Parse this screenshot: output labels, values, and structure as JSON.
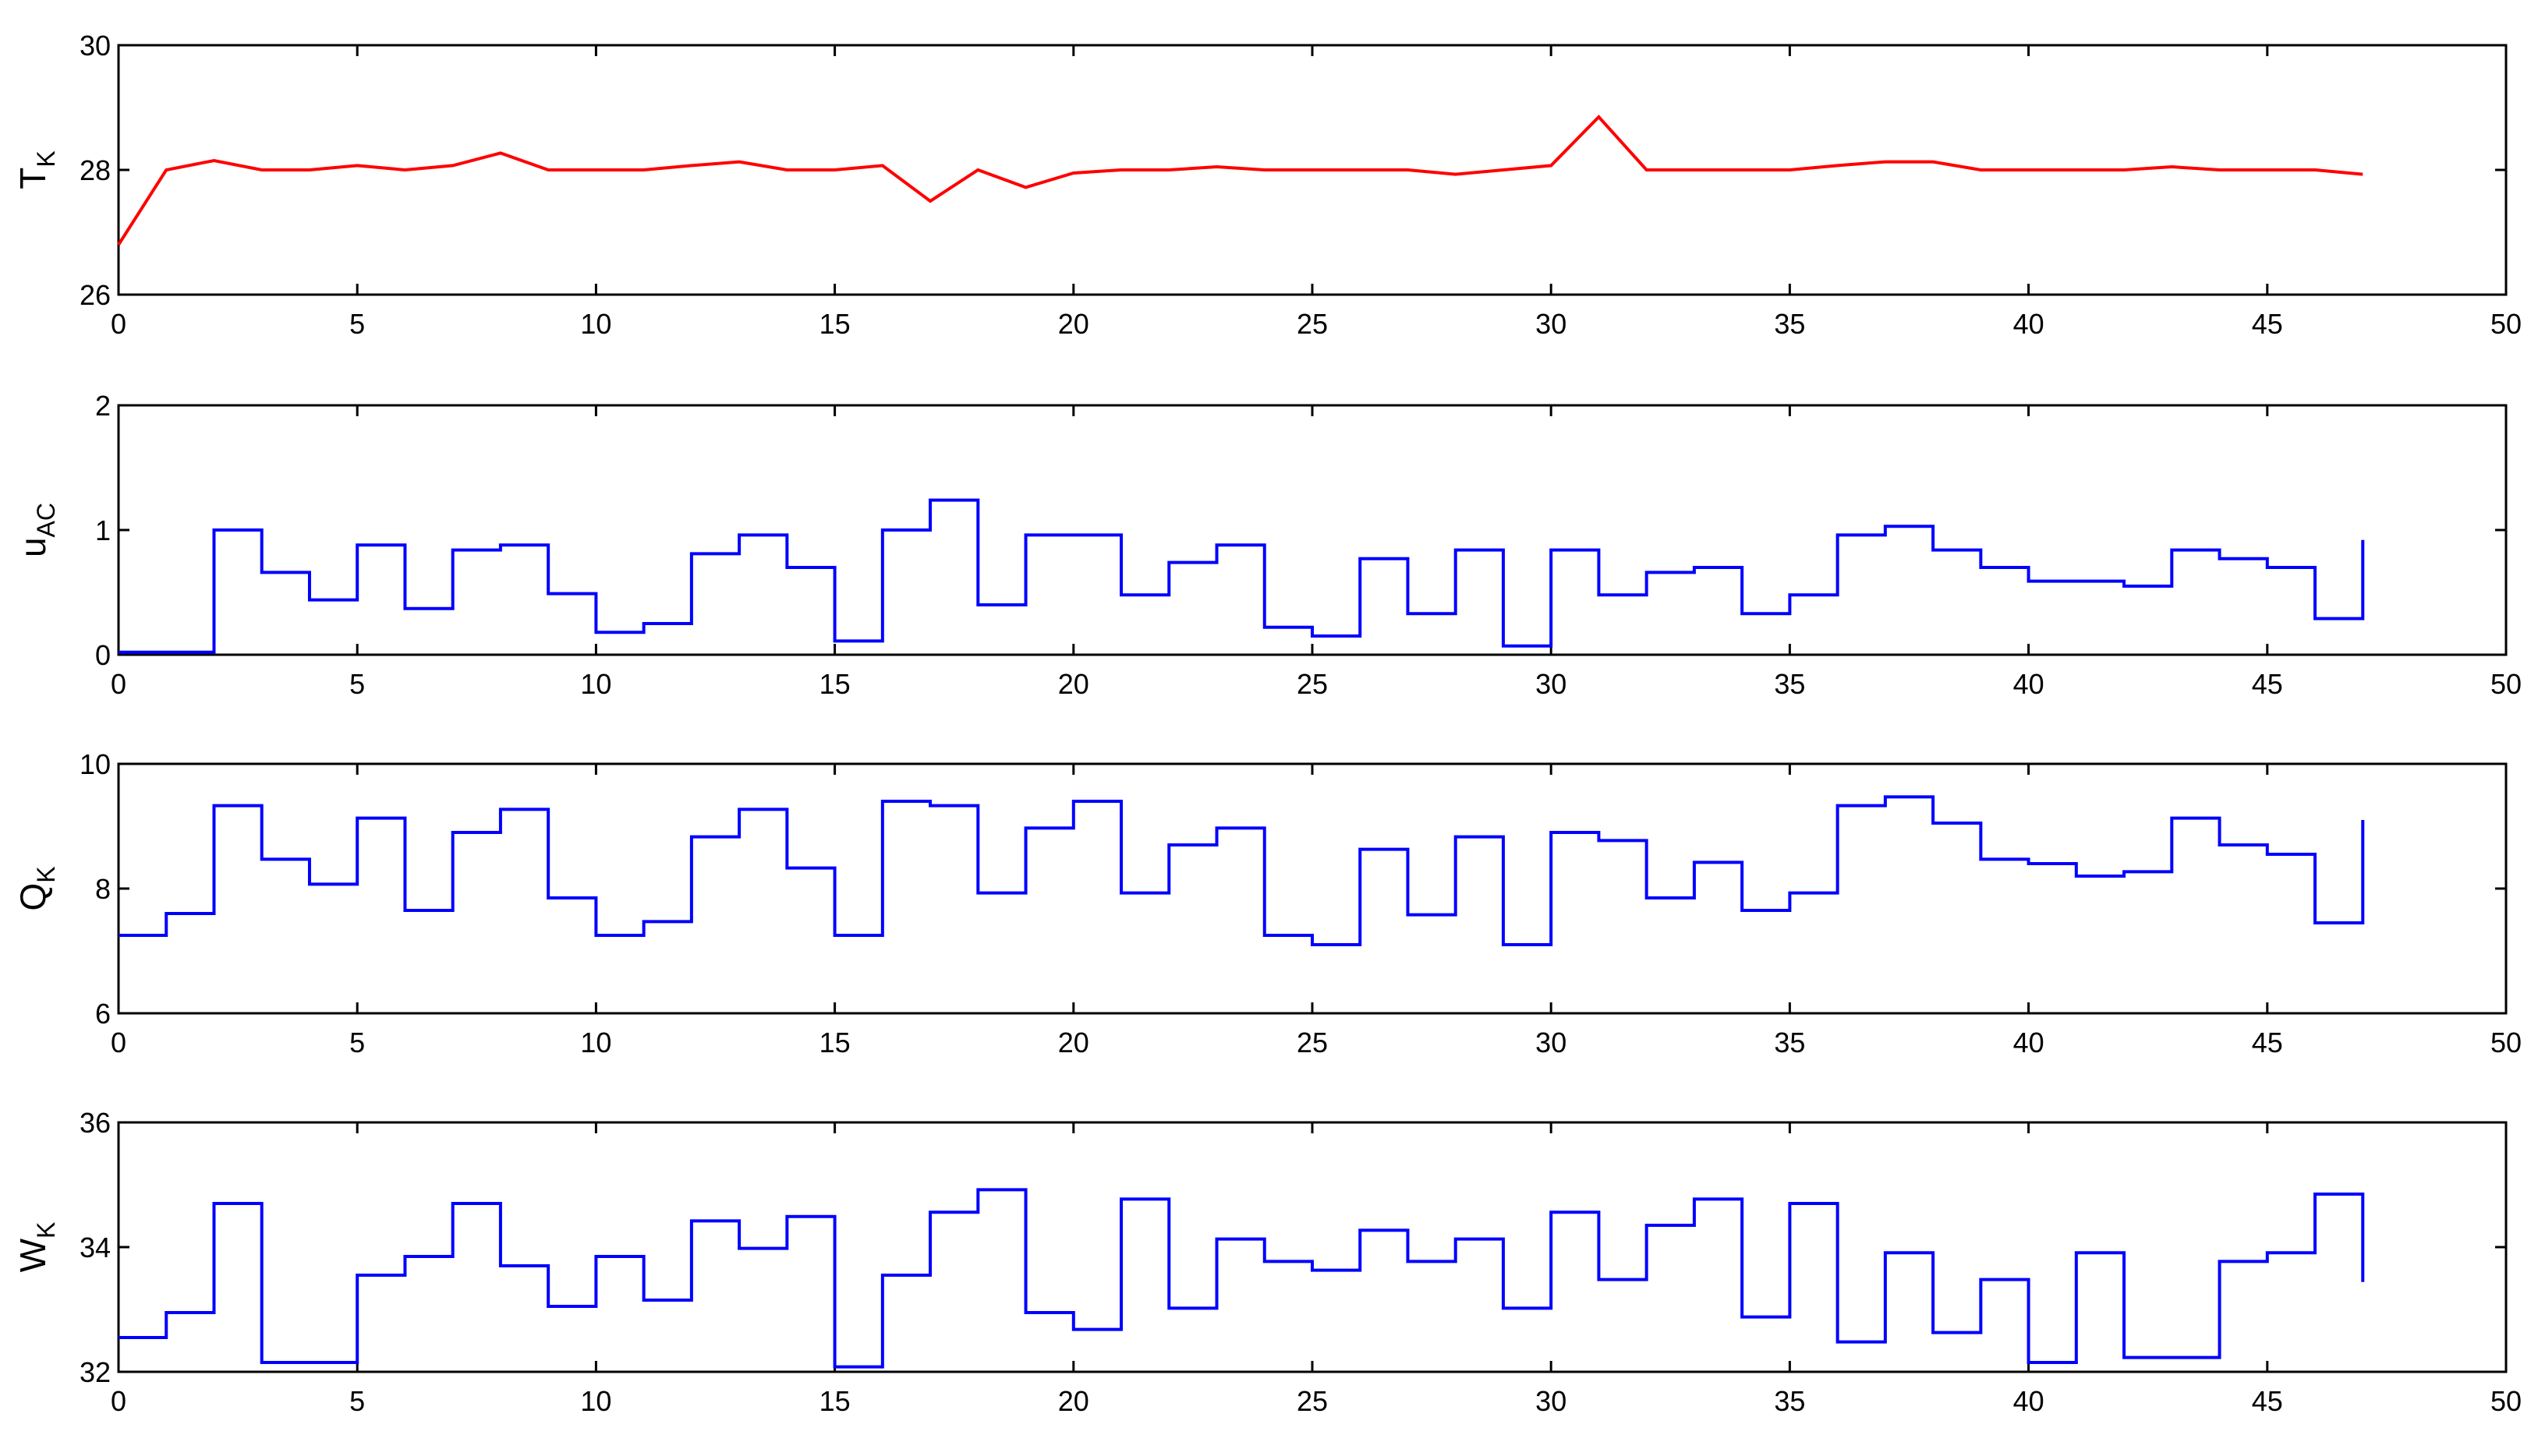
{
  "chart_data": [
    {
      "type": "line",
      "ylabel_main": "T",
      "ylabel_sub": "K",
      "xlim": [
        0,
        50
      ],
      "ylim": [
        26,
        30
      ],
      "xticks": [
        "0",
        "5",
        "10",
        "15",
        "20",
        "25",
        "30",
        "35",
        "40",
        "45",
        "50"
      ],
      "yticks": [
        "26",
        "28",
        "30"
      ],
      "step": false,
      "color": "#ff0000",
      "series": [
        {
          "x": [
            0,
            1,
            2,
            3,
            4,
            5,
            6,
            7,
            8,
            9,
            10,
            11,
            12,
            13,
            14,
            15,
            16,
            17,
            18,
            19,
            20,
            21,
            22,
            23,
            24,
            25,
            26,
            27,
            28,
            29,
            30,
            31,
            32,
            33,
            34,
            35,
            36,
            37,
            38,
            39,
            40,
            41,
            42,
            43,
            44,
            45,
            46,
            47
          ],
          "values": [
            26.8,
            28.0,
            28.15,
            28.0,
            28.0,
            28.07,
            28.0,
            28.07,
            28.27,
            28.0,
            28.0,
            28.0,
            28.07,
            28.13,
            28.0,
            28.0,
            28.07,
            27.5,
            28.0,
            27.72,
            27.95,
            28.0,
            28.0,
            28.05,
            28.0,
            28.0,
            28.0,
            28.0,
            27.93,
            28.0,
            28.07,
            28.85,
            28.0,
            28.0,
            28.0,
            28.0,
            28.07,
            28.13,
            28.13,
            28.0,
            28.0,
            28.0,
            28.0,
            28.05,
            28.0,
            28.0,
            28.0,
            27.93
          ]
        }
      ]
    },
    {
      "type": "line",
      "ylabel_main": "u",
      "ylabel_sub": "AC",
      "xlim": [
        0,
        50
      ],
      "ylim": [
        0,
        2
      ],
      "xticks": [
        "0",
        "5",
        "10",
        "15",
        "20",
        "25",
        "30",
        "35",
        "40",
        "45",
        "50"
      ],
      "yticks": [
        "0",
        "1",
        "2"
      ],
      "step": true,
      "color": "#0000ff",
      "series": [
        {
          "x": [
            0,
            1,
            2,
            3,
            4,
            5,
            6,
            7,
            8,
            9,
            10,
            11,
            12,
            13,
            14,
            15,
            16,
            17,
            18,
            19,
            20,
            21,
            22,
            23,
            24,
            25,
            26,
            27,
            28,
            29,
            30,
            31,
            32,
            33,
            34,
            35,
            36,
            37,
            38,
            39,
            40,
            41,
            42,
            43,
            44,
            45,
            46,
            47
          ],
          "values": [
            0.02,
            0.02,
            1.0,
            0.66,
            0.44,
            0.88,
            0.37,
            0.84,
            0.88,
            0.49,
            0.18,
            0.25,
            0.81,
            0.96,
            0.7,
            0.11,
            1.0,
            1.24,
            0.4,
            0.96,
            0.96,
            0.48,
            0.74,
            0.88,
            0.22,
            0.15,
            0.77,
            0.33,
            0.84,
            0.07,
            0.84,
            0.48,
            0.66,
            0.7,
            0.33,
            0.48,
            0.96,
            1.03,
            0.84,
            0.7,
            0.59,
            0.59,
            0.55,
            0.84,
            0.77,
            0.7,
            0.29,
            0.92
          ]
        }
      ]
    },
    {
      "type": "line",
      "ylabel_main": "Q",
      "ylabel_sub": "K",
      "xlim": [
        0,
        50
      ],
      "ylim": [
        6,
        10
      ],
      "xticks": [
        "0",
        "5",
        "10",
        "15",
        "20",
        "25",
        "30",
        "35",
        "40",
        "45",
        "50"
      ],
      "yticks": [
        "6",
        "8",
        "10"
      ],
      "step": true,
      "color": "#0000ff",
      "series": [
        {
          "x": [
            0,
            1,
            2,
            3,
            4,
            5,
            6,
            7,
            8,
            9,
            10,
            11,
            12,
            13,
            14,
            15,
            16,
            17,
            18,
            19,
            20,
            21,
            22,
            23,
            24,
            25,
            26,
            27,
            28,
            29,
            30,
            31,
            32,
            33,
            34,
            35,
            36,
            37,
            38,
            39,
            40,
            41,
            42,
            43,
            44,
            45,
            46,
            47
          ],
          "values": [
            7.25,
            7.6,
            9.33,
            8.47,
            8.07,
            9.13,
            7.65,
            8.9,
            9.27,
            7.85,
            7.25,
            7.47,
            8.83,
            9.27,
            8.33,
            7.25,
            9.4,
            9.33,
            7.93,
            8.97,
            9.4,
            7.93,
            8.7,
            8.97,
            7.25,
            7.1,
            8.63,
            7.58,
            8.83,
            7.1,
            8.9,
            8.77,
            7.85,
            8.42,
            7.65,
            7.93,
            9.33,
            9.47,
            9.05,
            8.47,
            8.4,
            8.2,
            8.27,
            9.13,
            8.7,
            8.55,
            7.45,
            9.1
          ]
        }
      ]
    },
    {
      "type": "line",
      "ylabel_main": "W",
      "ylabel_sub": "K",
      "xlim": [
        0,
        50
      ],
      "ylim": [
        32,
        36
      ],
      "xticks": [
        "0",
        "5",
        "10",
        "15",
        "20",
        "25",
        "30",
        "35",
        "40",
        "45",
        "50"
      ],
      "yticks": [
        "32",
        "34",
        "36"
      ],
      "step": true,
      "color": "#0000ff",
      "series": [
        {
          "x": [
            0,
            1,
            2,
            3,
            4,
            5,
            6,
            7,
            8,
            9,
            10,
            11,
            12,
            13,
            14,
            15,
            16,
            17,
            18,
            19,
            20,
            21,
            22,
            23,
            24,
            25,
            26,
            27,
            28,
            29,
            30,
            31,
            32,
            33,
            34,
            35,
            36,
            37,
            38,
            39,
            40,
            41,
            42,
            43,
            44,
            45,
            46,
            47
          ],
          "values": [
            32.55,
            32.95,
            34.7,
            32.15,
            32.15,
            33.55,
            33.85,
            34.7,
            33.7,
            33.05,
            33.85,
            33.15,
            34.42,
            33.98,
            34.49,
            32.08,
            33.55,
            34.56,
            34.92,
            32.95,
            32.68,
            34.77,
            33.02,
            34.13,
            33.77,
            33.63,
            34.27,
            33.77,
            34.13,
            33.02,
            34.56,
            33.48,
            34.35,
            34.77,
            32.88,
            34.7,
            32.48,
            33.91,
            32.63,
            33.48,
            32.15,
            33.91,
            32.23,
            32.23,
            33.77,
            33.91,
            34.85,
            33.44
          ]
        }
      ]
    }
  ]
}
